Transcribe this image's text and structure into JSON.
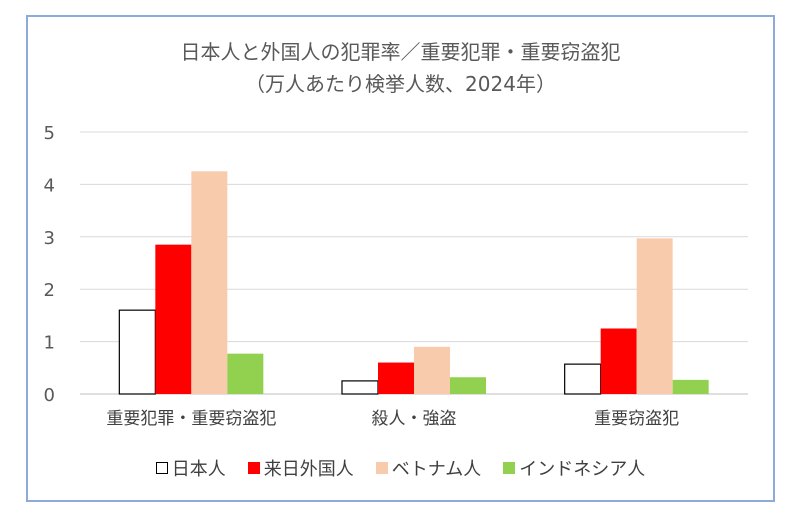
{
  "chart_data": {
    "type": "bar",
    "title": "日本人と外国人の犯罪率／重要犯罪・重要窃盗犯",
    "subtitle": "（万人あたり検挙人数、2024年）",
    "categories": [
      "重要犯罪・重要窃盗犯",
      "殺人・強盗",
      "重要窃盗犯"
    ],
    "series": [
      {
        "name": "日本人",
        "values": [
          1.6,
          0.25,
          0.57
        ],
        "color": "#ffffff",
        "stroke": "#000000"
      },
      {
        "name": "来日外国人",
        "values": [
          2.85,
          0.6,
          1.25
        ],
        "color": "#ff0000"
      },
      {
        "name": "ベトナム人",
        "values": [
          4.25,
          0.9,
          2.97
        ],
        "color": "#f8cbad"
      },
      {
        "name": "インドネシア人",
        "values": [
          0.77,
          0.32,
          0.27
        ],
        "color": "#92d050"
      }
    ],
    "yticks": [
      "0",
      "1",
      "2",
      "3",
      "4",
      "5"
    ],
    "ylim": [
      0,
      5
    ],
    "grid": true,
    "legend": "bottom",
    "border_color": "#8eaadb"
  }
}
